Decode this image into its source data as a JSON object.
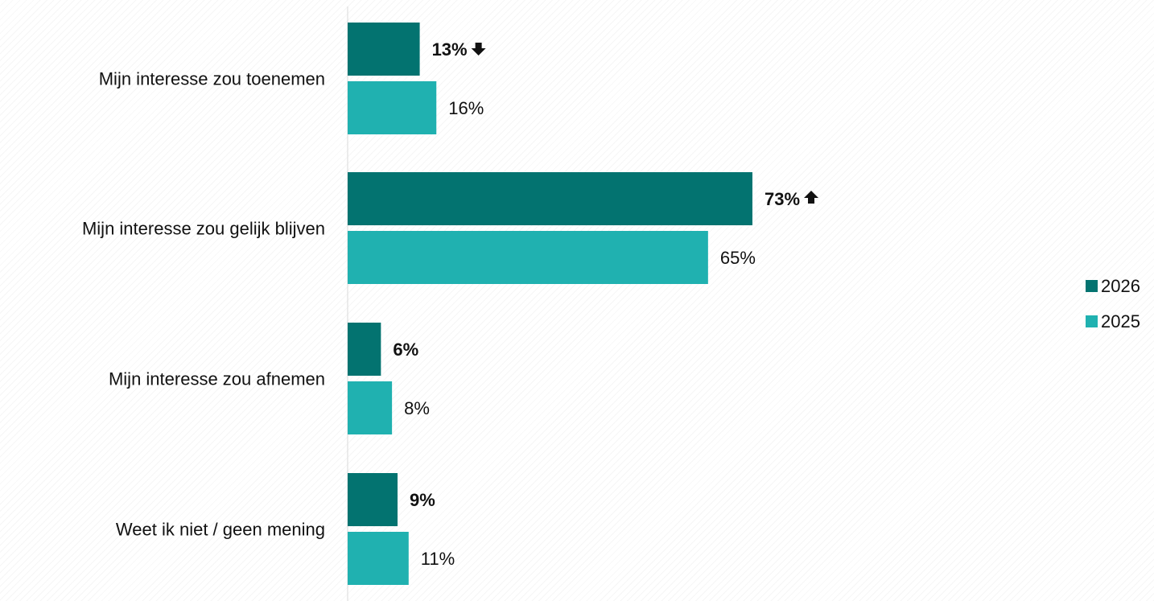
{
  "chart_data": {
    "type": "bar",
    "orientation": "horizontal",
    "categories": [
      "Mijn interesse zou toenemen",
      "Mijn interesse zou gelijk blijven",
      "Mijn interesse zou afnemen",
      "Weet ik niet / geen mening"
    ],
    "series": [
      {
        "name": "2026",
        "color": "#037370",
        "values": [
          13,
          73,
          6,
          9
        ],
        "labels": [
          "13%",
          "73%",
          "6%",
          "9%"
        ],
        "label_bold": true,
        "trend": [
          "down",
          "up",
          "none",
          "none"
        ]
      },
      {
        "name": "2025",
        "color": "#20B1B0",
        "values": [
          16,
          65,
          8,
          11
        ],
        "labels": [
          "16%",
          "65%",
          "8%",
          "11%"
        ],
        "label_bold": false
      }
    ],
    "xlim": [
      0,
      100
    ],
    "legend_position": "right",
    "grid": false
  }
}
